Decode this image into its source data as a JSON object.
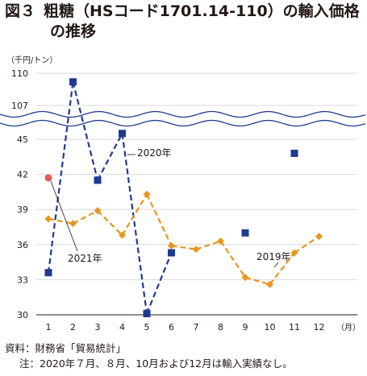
{
  "title": {
    "number": "図３",
    "line1": "粗糖（HSコード1701.14-110）の輸入価格",
    "line2": "の推移"
  },
  "unit_label": "（千円/トン）",
  "month_suffix": "（月）",
  "notes": {
    "source": "資料：財務省「貿易統計」",
    "note": "注：2020年７月、８月、10月および12月は輸入実績なし。"
  },
  "colors": {
    "y2020": "#1f3b8f",
    "y2019": "#e8961e",
    "y2021": "#e05a5a",
    "axis": "#231815",
    "grid": "#d9d9d9",
    "break_line": "#1f3b8f"
  },
  "chart_data": {
    "type": "line",
    "title": "粗糖（HSコード1701.14-110）の輸入価格の推移",
    "xlabel": "（月）",
    "ylabel": "（千円/トン）",
    "x": [
      1,
      2,
      3,
      4,
      5,
      6,
      7,
      8,
      9,
      10,
      11,
      12
    ],
    "y_ticks_lower": [
      30,
      33,
      36,
      39,
      42,
      45
    ],
    "y_ticks_upper": [
      107,
      110
    ],
    "ylim": [
      30,
      110
    ],
    "axis_break": [
      45,
      107
    ],
    "grid": true,
    "series": [
      {
        "name": "2020年",
        "style": "dashed-line-square-markers",
        "values": [
          33.6,
          109.2,
          41.5,
          45.5,
          30.1,
          35.3,
          null,
          null,
          37.0,
          null,
          43.8,
          null
        ]
      },
      {
        "name": "2019年",
        "style": "dashed-line-diamond-markers",
        "values": [
          38.2,
          37.8,
          38.9,
          36.8,
          40.3,
          35.9,
          35.6,
          36.3,
          33.2,
          32.6,
          35.3,
          36.7
        ]
      },
      {
        "name": "2021年",
        "style": "circle-marker",
        "values": [
          41.7,
          null,
          null,
          null,
          null,
          null,
          null,
          null,
          null,
          null,
          null,
          null
        ]
      }
    ]
  }
}
